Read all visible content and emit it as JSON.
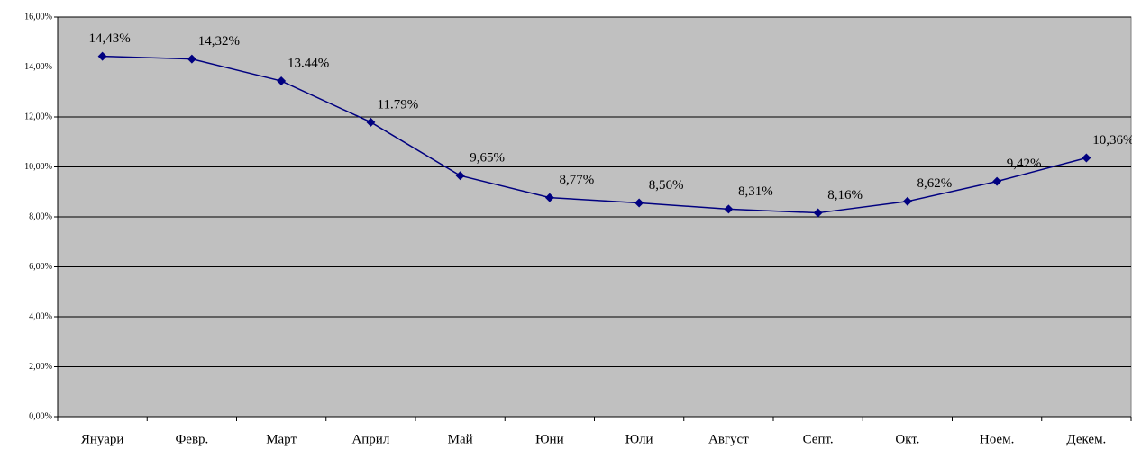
{
  "chart_data": {
    "type": "line",
    "categories": [
      "Януари",
      "Февр.",
      "Март",
      "Април",
      "Май",
      "Юни",
      "Юли",
      "Август",
      "Септ.",
      "Окт.",
      "Ноем.",
      "Декем."
    ],
    "series": [
      {
        "color": "#000080",
        "values": [
          14.43,
          14.32,
          13.44,
          11.79,
          9.65,
          8.77,
          8.56,
          8.31,
          8.16,
          8.62,
          9.42,
          10.36
        ],
        "value_labels": [
          "14,43%",
          "14,32%",
          "13.44%",
          "11.79%",
          "9,65%",
          "8,77%",
          "8,56%",
          "8,31%",
          "8,16%",
          "8,62%",
          "9,42%",
          "10,36%"
        ]
      }
    ],
    "ylim": [
      0,
      16
    ],
    "yticks": [
      {
        "value": 0,
        "label": "0,00%"
      },
      {
        "value": 2,
        "label": "2,00%"
      },
      {
        "value": 4,
        "label": "4,00%"
      },
      {
        "value": 6,
        "label": "6,00%"
      },
      {
        "value": 8,
        "label": "8,00%"
      },
      {
        "value": 10,
        "label": "10,00%"
      },
      {
        "value": 12,
        "label": "12,00%"
      },
      {
        "value": 14,
        "label": "14,00%"
      },
      {
        "value": 16,
        "label": "16,00%"
      }
    ],
    "grid": true,
    "plot_background": "#c0c0c0"
  }
}
